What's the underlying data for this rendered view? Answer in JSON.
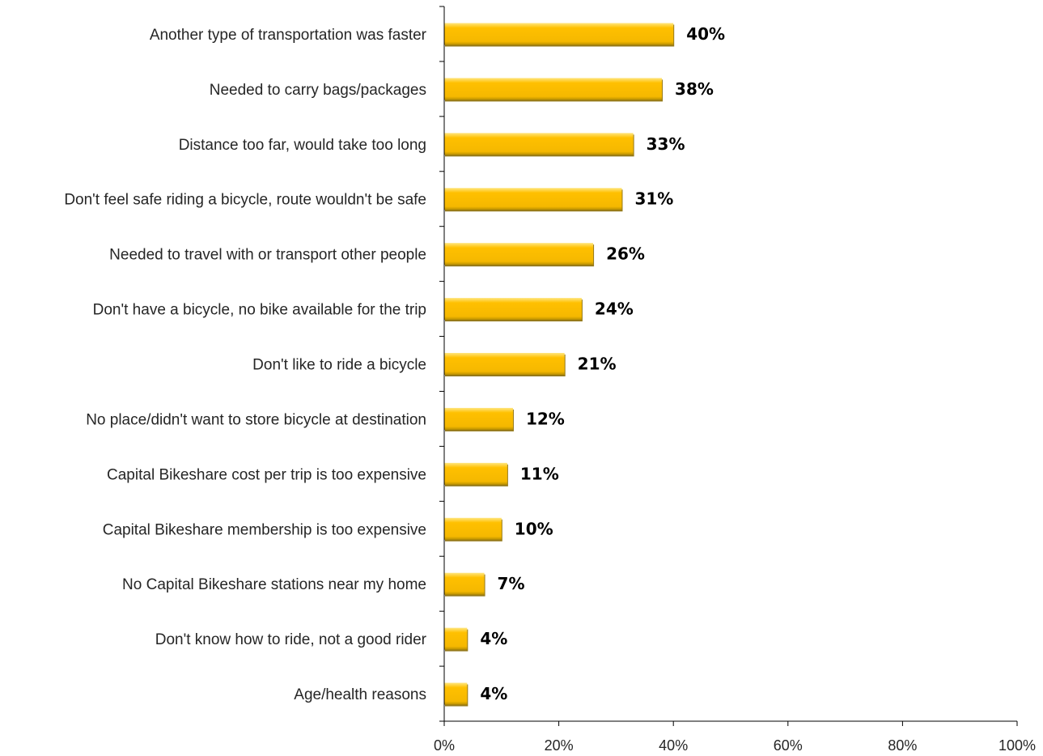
{
  "chart_data": {
    "type": "bar",
    "orientation": "horizontal",
    "categories": [
      "Another type of transportation was faster",
      "Needed to carry bags/packages",
      "Distance too far, would take too long",
      "Don't feel safe riding a bicycle, route wouldn't be safe",
      "Needed to travel with or transport other people",
      "Don't have a bicycle, no bike available for the trip",
      "Don't like to ride a bicycle",
      "No place/didn't want to store bicycle at destination",
      "Capital Bikeshare cost per trip is too expensive",
      "Capital Bikeshare membership is too expensive",
      "No Capital Bikeshare stations near my home",
      "Don't know how to ride, not a good rider",
      "Age/health reasons"
    ],
    "values": [
      40,
      38,
      33,
      31,
      26,
      24,
      21,
      12,
      11,
      10,
      7,
      4,
      4
    ],
    "data_labels": [
      "40%",
      "38%",
      "33%",
      "31%",
      "26%",
      "24%",
      "21%",
      "12%",
      "11%",
      "10%",
      "7%",
      "4%",
      "4%"
    ],
    "xlim": [
      0,
      100
    ],
    "x_ticks": [
      0,
      20,
      40,
      60,
      80,
      100
    ],
    "x_tick_labels": [
      "0%",
      "20%",
      "40%",
      "60%",
      "80%",
      "100%"
    ],
    "title": "",
    "xlabel": "",
    "ylabel": "",
    "grid": false,
    "legend": "none",
    "colors": {
      "bar": "#FFC000",
      "bar_highlight": "#FFE680",
      "bar_shadow": "#8A6A00",
      "axis": "#000000",
      "category_text": "#262626",
      "value_text": "#000000"
    }
  }
}
